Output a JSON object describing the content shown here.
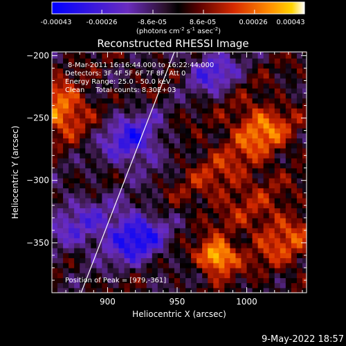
{
  "colorbar": {
    "tick_labels": [
      "-0.00043",
      "-0.00026",
      "-8.6e-05",
      "8.6e-05",
      "0.00026",
      "0.00043"
    ],
    "unit_label": "(photons cm",
    "unit_label_parts": [
      "(photons cm",
      "-2",
      " s",
      "-1",
      " asec",
      "-2",
      ")"
    ]
  },
  "chart_data": {
    "type": "heatmap",
    "title": "Reconstructed RHESSI Image",
    "xlabel": "Heliocentric X (arcsec)",
    "ylabel": "Heliocentric Y (arcsec)",
    "xlim": [
      860,
      1043
    ],
    "ylim": [
      -390,
      -197
    ],
    "x_ticks": [
      900,
      950,
      1000
    ],
    "x_tick_labels": [
      "900",
      "950",
      "1000"
    ],
    "y_ticks": [
      -350,
      -300,
      -250,
      -200
    ],
    "y_tick_labels": [
      "−350",
      "−300",
      "−250",
      "−200"
    ],
    "color_range": [
      -0.00043,
      0.00043
    ],
    "colormap": [
      "#0000ff",
      "#6a2cbf",
      "#3a1a3a",
      "#000000",
      "#6a0000",
      "#d62a00",
      "#ff7a00",
      "#ffd400",
      "#ffffff"
    ],
    "annotations": [
      "8-Mar-2011 16:16:44.000 to 16:22:44.000",
      "Detectors: 3F 4F 5F 6F 7F 8F, Att 0",
      "Energy Range: 25.0 - 50.0 keV",
      "Clean     Total counts: 8.30E+03"
    ],
    "peak_label": "Position of Peak = [979,-361]",
    "peak": [
      979,
      -361
    ],
    "limb_line": [
      [
        881,
        -390
      ],
      [
        948,
        -197
      ]
    ],
    "sources": [
      {
        "name": "peak-source",
        "x": 979,
        "y": -361,
        "sigma": 9,
        "amp": 1.0
      },
      {
        "name": "upper-left-source",
        "x": 866,
        "y": -243,
        "sigma": 14,
        "amp": 0.72
      },
      {
        "name": "right-source",
        "x": 1010,
        "y": -258,
        "sigma": 15,
        "amp": 0.62
      },
      {
        "name": "lower-right-source",
        "x": 1025,
        "y": -345,
        "sigma": 18,
        "amp": 0.45
      },
      {
        "name": "mid-right-source",
        "x": 985,
        "y": -300,
        "sigma": 22,
        "amp": 0.32
      },
      {
        "name": "neg-center",
        "x": 918,
        "y": -268,
        "sigma": 16,
        "amp": -0.7
      },
      {
        "name": "neg-lower",
        "x": 920,
        "y": -345,
        "sigma": 15,
        "amp": -0.85
      },
      {
        "name": "neg-top",
        "x": 975,
        "y": -212,
        "sigma": 13,
        "amp": -0.6
      },
      {
        "name": "neg-left",
        "x": 878,
        "y": -335,
        "sigma": 18,
        "amp": -0.45
      }
    ]
  },
  "footer": {
    "timestamp": "9-May-2022 18:57"
  }
}
